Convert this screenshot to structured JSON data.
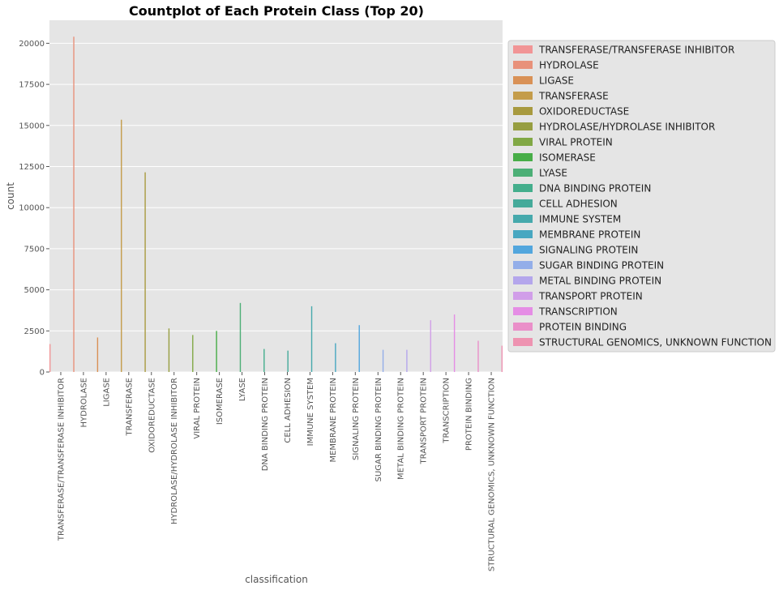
{
  "chart_data": {
    "type": "bar",
    "title": "Countplot of Each Protein Class (Top 20)",
    "xlabel": "classification",
    "ylabel": "count",
    "ylim": [
      0,
      21400
    ],
    "yticks": [
      0,
      2500,
      5000,
      7500,
      10000,
      12500,
      15000,
      17500,
      20000
    ],
    "grid": true,
    "legend_position": "right",
    "categories": [
      "TRANSFERASE/TRANSFERASE INHIBITOR",
      "HYDROLASE",
      "LIGASE",
      "TRANSFERASE",
      "OXIDOREDUCTASE",
      "HYDROLASE/HYDROLASE INHIBITOR",
      "VIRAL PROTEIN",
      "ISOMERASE",
      "LYASE",
      "DNA BINDING PROTEIN",
      "CELL ADHESION",
      "IMMUNE SYSTEM",
      "MEMBRANE PROTEIN",
      "SIGNALING PROTEIN",
      "SUGAR BINDING PROTEIN",
      "METAL BINDING PROTEIN",
      "TRANSPORT PROTEIN",
      "TRANSCRIPTION",
      "PROTEIN BINDING",
      "STRUCTURAL GENOMICS, UNKNOWN FUNCTION"
    ],
    "values": [
      1700,
      20400,
      2100,
      15350,
      12150,
      2650,
      2250,
      2500,
      4200,
      1400,
      1300,
      4000,
      1750,
      2850,
      1350,
      1350,
      3150,
      3500,
      1900,
      1600
    ],
    "colors": [
      "#f19596",
      "#e8917a",
      "#d99156",
      "#c49c4a",
      "#a89a3f",
      "#979e41",
      "#81a845",
      "#47ad47",
      "#4caf76",
      "#44ae8c",
      "#45aa9a",
      "#46a9ac",
      "#48a7c1",
      "#52a6dd",
      "#93aee9",
      "#b4a6ec",
      "#d19ee9",
      "#e58de5",
      "#ea8fc9",
      "#ee93b1"
    ]
  }
}
